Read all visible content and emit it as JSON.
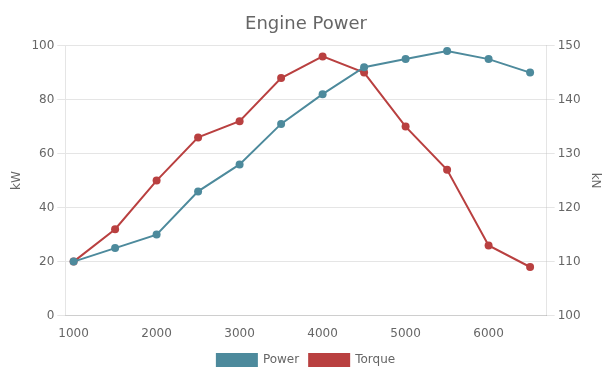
{
  "chart_data": {
    "type": "line",
    "title": "Engine Power",
    "x": [
      1000,
      1500,
      2000,
      2500,
      3000,
      3500,
      4000,
      4500,
      5000,
      5500,
      6000,
      6500
    ],
    "series": [
      {
        "name": "Power",
        "color": "#4d8a9c",
        "marker": "circle",
        "values": [
          20,
          25,
          30,
          46,
          56,
          71,
          82,
          92,
          95,
          98,
          95,
          90
        ]
      },
      {
        "name": "Torque",
        "color": "#b94040",
        "marker": "circle",
        "axis": "y2",
        "values": [
          110,
          116,
          125,
          133,
          136,
          144,
          148,
          145,
          135,
          127,
          113,
          109
        ]
      }
    ],
    "xlim": [
      900,
      6700
    ],
    "xticks": [
      1000,
      2000,
      3000,
      4000,
      5000,
      6000
    ],
    "ylim": [
      0,
      100
    ],
    "yticks": [
      0,
      20,
      40,
      60,
      80,
      100
    ],
    "y2lim": [
      100,
      150
    ],
    "y2ticks": [
      100,
      110,
      120,
      130,
      140,
      150
    ],
    "ylabel": "kW",
    "y2label": "kN",
    "grid": true,
    "legend": "bottom"
  }
}
